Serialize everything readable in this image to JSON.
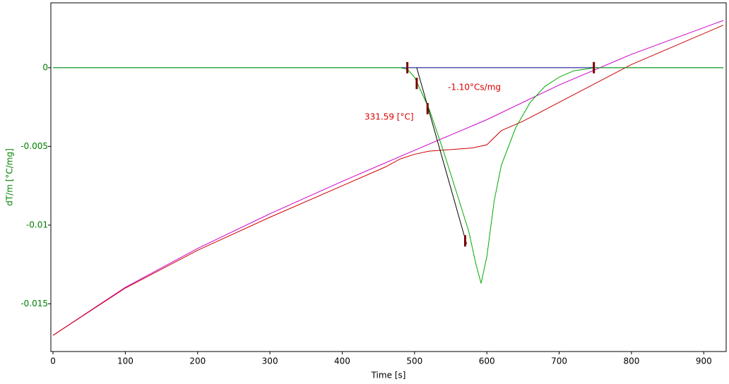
{
  "chart_data": {
    "type": "line",
    "xlabel": "Time [s]",
    "ylabel": "dT/m  [°C/mg]",
    "xlim": [
      -3,
      931
    ],
    "ylim": [
      -0.01803,
      0.00412
    ],
    "xticks": [
      0,
      100,
      200,
      300,
      400,
      500,
      600,
      700,
      800,
      900
    ],
    "yticks": [
      0,
      -0.005,
      -0.01,
      -0.015
    ],
    "grid": false,
    "series": [
      {
        "color": "#00008b",
        "x": [
          0,
          927
        ],
        "values": [
          0,
          0
        ]
      },
      {
        "color": "#cc00cc",
        "x": [
          0,
          100,
          200,
          300,
          400,
          500,
          600,
          700,
          800,
          927
        ],
        "values": [
          -0.017,
          -0.01395,
          -0.01148,
          -0.00928,
          -0.00722,
          -0.00525,
          -0.0033,
          -0.0011,
          0.00085,
          0.003
        ]
      },
      {
        "color": "#cc0000",
        "x": [
          0,
          100,
          200,
          300,
          400,
          460,
          480,
          500,
          520,
          580,
          600,
          620,
          650,
          700,
          750,
          800,
          927
        ],
        "values": [
          -0.017,
          -0.014,
          -0.0116,
          -0.0095,
          -0.0075,
          -0.0063,
          -0.0058,
          -0.0055,
          -0.0053,
          -0.0051,
          -0.0049,
          -0.004,
          -0.0034,
          -0.0022,
          -0.001,
          0.0002,
          0.0027
        ]
      },
      {
        "color": "#00aa00",
        "x": [
          0,
          480,
          490,
          500,
          520,
          540,
          560,
          575,
          585,
          592,
          600,
          610,
          620,
          640,
          660,
          680,
          700,
          720,
          750,
          927
        ],
        "values": [
          0,
          0,
          -0.0001,
          -0.0006,
          -0.0026,
          -0.0053,
          -0.0082,
          -0.0104,
          -0.0125,
          -0.0137,
          -0.012,
          -0.0085,
          -0.0062,
          -0.0038,
          -0.0022,
          -0.0012,
          -0.0006,
          -0.0002,
          0,
          0
        ]
      },
      {
        "color": "#000000",
        "x": [
          503,
          572
        ],
        "values": [
          0,
          -0.0112
        ]
      }
    ],
    "markers": {
      "color": "#7a0000",
      "x": [
        490,
        503,
        518,
        570,
        748
      ],
      "values": [
        0,
        -0.001,
        -0.0026,
        -0.011,
        0
      ]
    },
    "annotations": [
      "-1.10°Cs/mg",
      "331.59 [°C]"
    ]
  }
}
